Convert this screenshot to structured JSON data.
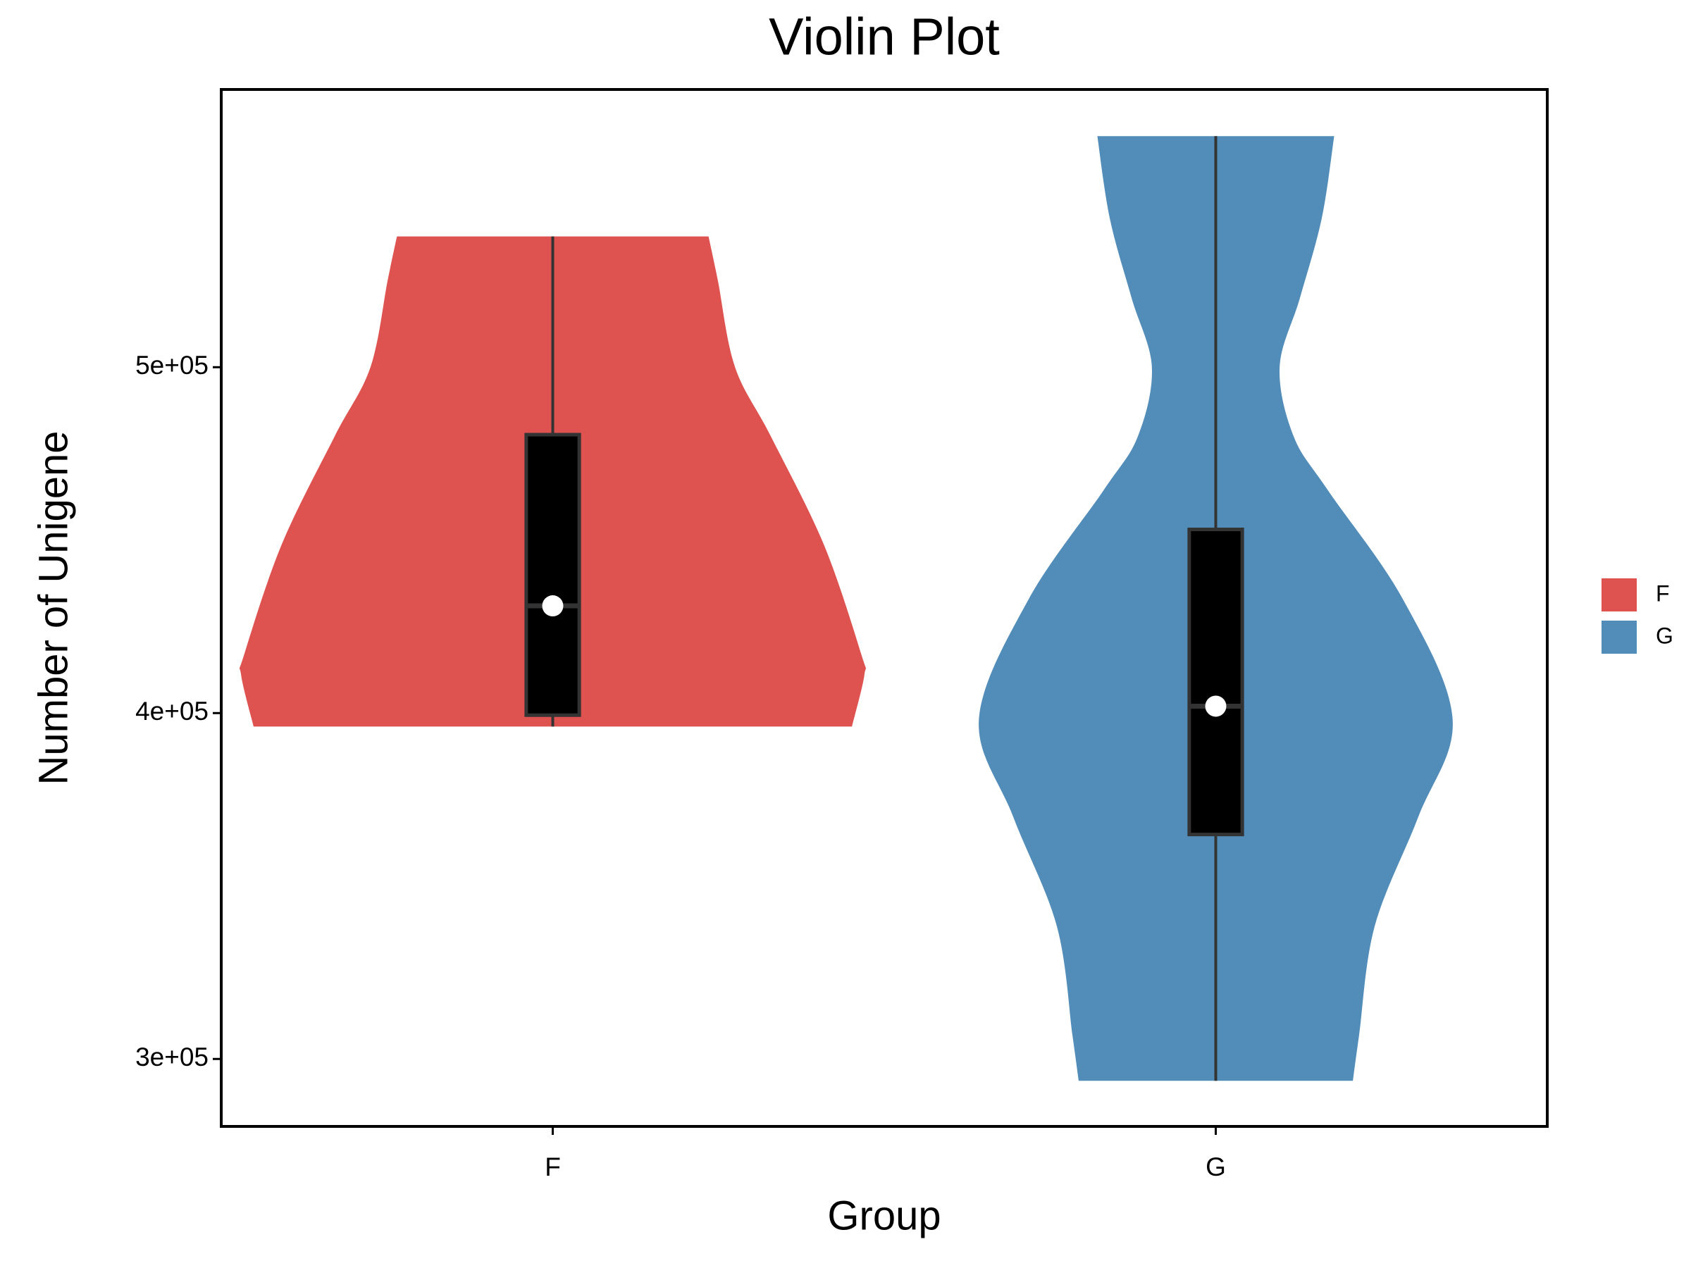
{
  "chart_data": {
    "type": "violin",
    "title": "Violin Plot",
    "xlabel": "Group",
    "ylabel": "Number of Unigene",
    "categories": [
      "F",
      "G"
    ],
    "series": [
      {
        "name": "F",
        "color": "#DE5350",
        "violin": {
          "y": [
            537800,
            525000,
            500000,
            480000,
            448700,
            417000,
            411000,
            396100
          ],
          "width": [
            0.5,
            0.53,
            0.585,
            0.7,
            0.87,
            0.99,
            1.0,
            0.96
          ]
        },
        "min": 396100,
        "q1": 399400,
        "median": 431000,
        "q3": 480500,
        "max": 537800
      },
      {
        "name": "G",
        "color": "#528DBA",
        "violin": {
          "y": [
            566800,
            543000,
            520000,
            500000,
            480000,
            464400,
            433000,
            398300,
            370000,
            338400,
            306900,
            293700
          ],
          "width": [
            0.38,
            0.34,
            0.27,
            0.205,
            0.25,
            0.36,
            0.6,
            0.76,
            0.65,
            0.51,
            0.46,
            0.44
          ]
        },
        "min": 293700,
        "q1": 364900,
        "median": 402000,
        "q3": 453100,
        "max": 566800
      }
    ],
    "ylim": [
      280500,
      580300
    ],
    "yticks": [
      {
        "value": 300000,
        "label": "3e+05"
      },
      {
        "value": 400000,
        "label": "4e+05"
      },
      {
        "value": 500000,
        "label": "5e+05"
      }
    ],
    "legend": "right"
  }
}
